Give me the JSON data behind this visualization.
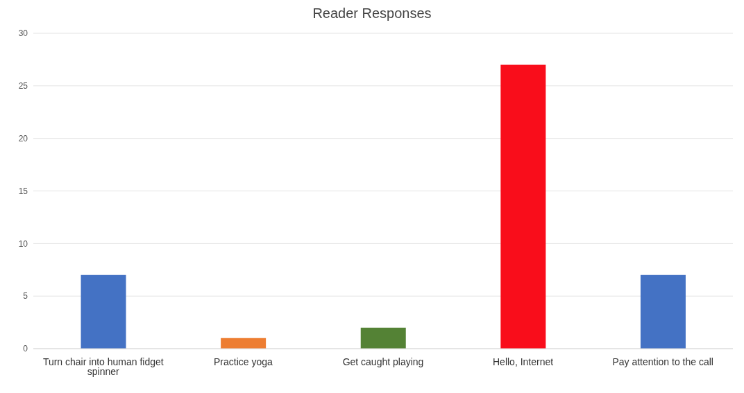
{
  "chart_data": {
    "type": "bar",
    "title": "Reader Responses",
    "categories": [
      "Turn chair into human fidget spinner",
      "Practice yoga",
      "Get caught playing",
      "Hello, Internet",
      "Pay attention to the call"
    ],
    "values": [
      7,
      1,
      2,
      27,
      7
    ],
    "colors": [
      "#4472c4",
      "#ed7d31",
      "#548235",
      "#f90d1b",
      "#4472c4"
    ],
    "ylim": [
      0,
      30
    ],
    "yticks": [
      0,
      5,
      10,
      15,
      20,
      25,
      30
    ],
    "grid": "y"
  }
}
